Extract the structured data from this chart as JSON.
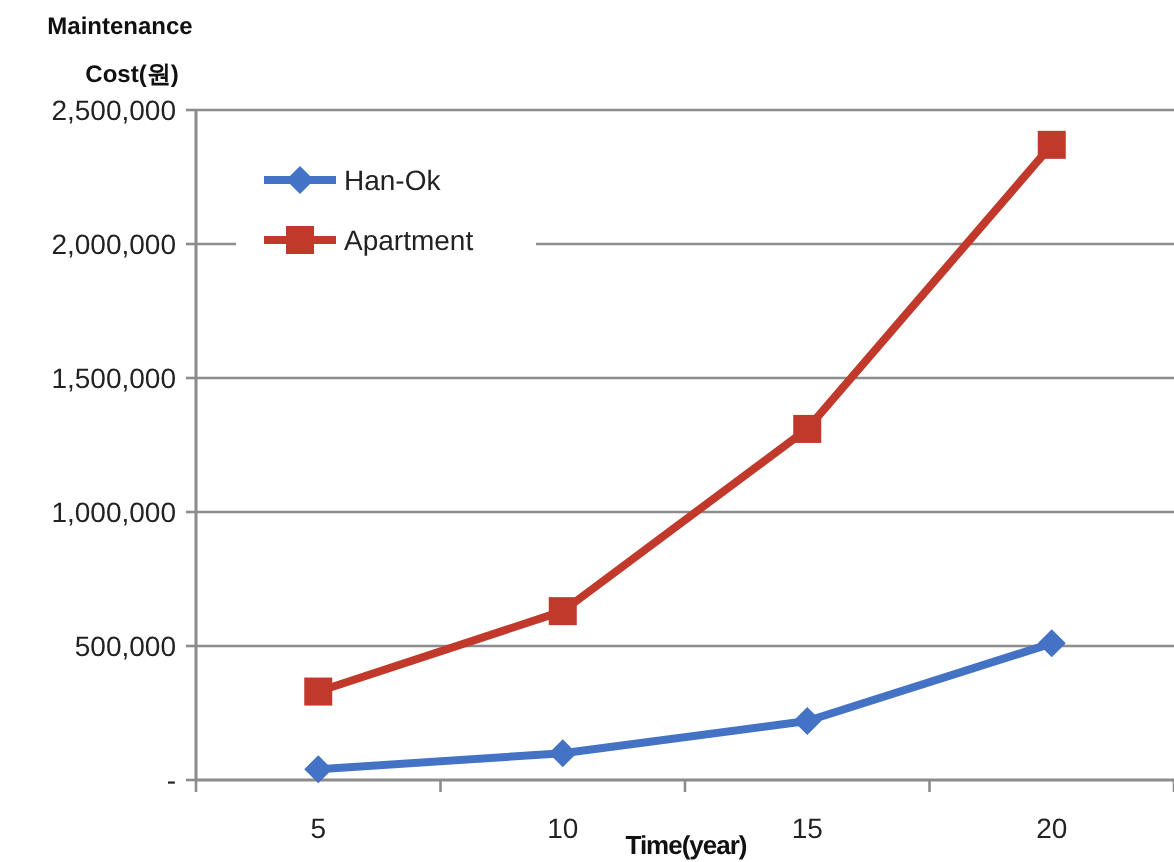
{
  "chart_data": {
    "type": "line",
    "ylabel": "Maintenance Cost(원)",
    "xlabel": "Time(year)",
    "categories": [
      "5",
      "10",
      "15",
      "20"
    ],
    "series": [
      {
        "name": "Han-Ok",
        "color": "#4472c4",
        "marker": "diamond",
        "values": [
          40000,
          100000,
          220000,
          510000
        ]
      },
      {
        "name": "Apartment",
        "color": "#c0392b",
        "marker": "square",
        "values": [
          330000,
          630000,
          1310000,
          2370000
        ]
      }
    ],
    "ylim": [
      0,
      2500000
    ],
    "yticks": [
      {
        "value": 0,
        "label": "-"
      },
      {
        "value": 500000,
        "label": "500,000"
      },
      {
        "value": 1000000,
        "label": "1,000,000"
      },
      {
        "value": 1500000,
        "label": "1,500,000"
      },
      {
        "value": 2000000,
        "label": "2,000,000"
      },
      {
        "value": 2500000,
        "label": "2,500,000"
      }
    ],
    "grid": "y",
    "legend": "top left"
  }
}
